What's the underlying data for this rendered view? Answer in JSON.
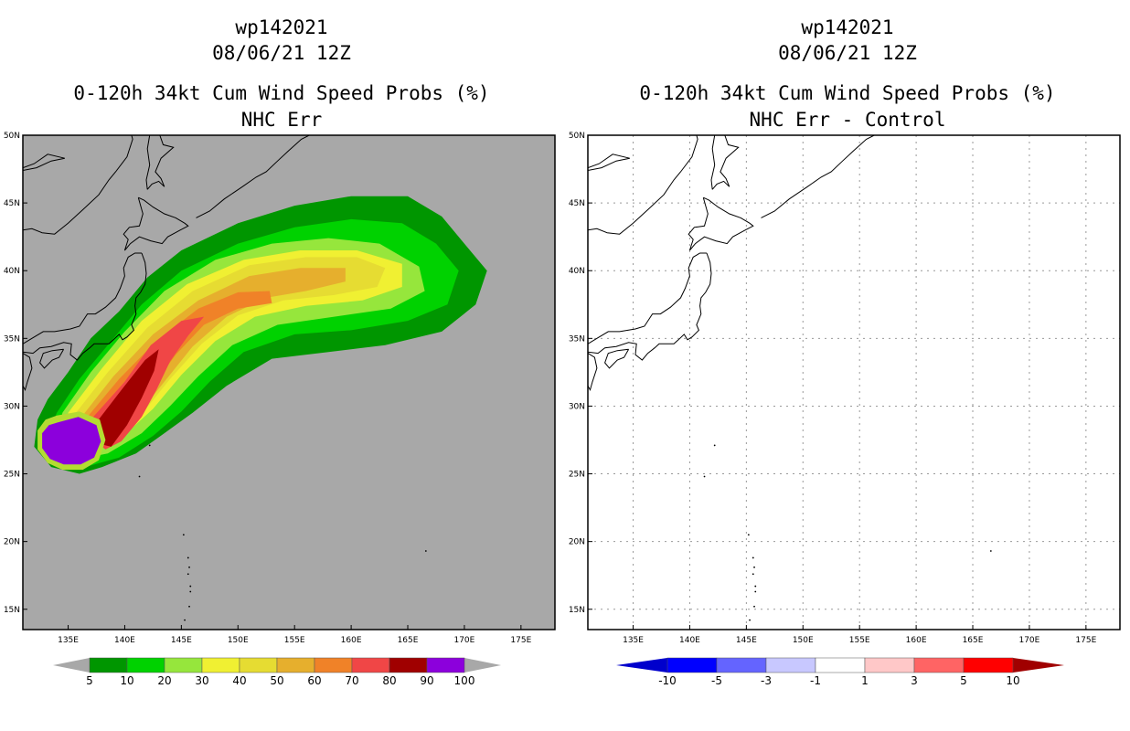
{
  "left": {
    "title_line1": "wp142021",
    "title_line2": "08/06/21 12Z",
    "title_line3": "0-120h 34kt Cum Wind Speed Probs (%)",
    "title_line4": "NHC Err"
  },
  "right": {
    "title_line1": "wp142021",
    "title_line2": "08/06/21 12Z",
    "title_line3": "0-120h 34kt Cum Wind Speed Probs (%)",
    "title_line4": "NHC Err - Control"
  },
  "chart_data": [
    {
      "type": "heatmap",
      "title": "0-120h 34kt Cum Wind Speed Probs (%)",
      "subtitle": "NHC Err",
      "xlim": [
        131,
        178
      ],
      "ylim": [
        13.5,
        50
      ],
      "x_ticks": [
        "135E",
        "140E",
        "145E",
        "150E",
        "155E",
        "160E",
        "165E",
        "170E",
        "175E"
      ],
      "y_ticks": [
        "15N",
        "20N",
        "25N",
        "30N",
        "35N",
        "40N",
        "45N",
        "50N"
      ],
      "background_color": "#a8a8a8",
      "legend_levels": [
        "5",
        "10",
        "20",
        "30",
        "40",
        "50",
        "60",
        "70",
        "80",
        "90",
        "100"
      ],
      "legend_colors": [
        "#009600",
        "#00d200",
        "#96e63c",
        "#f0f032",
        "#e6dc32",
        "#e6af2d",
        "#f08228",
        "#f04646",
        "#a00000",
        "#8c00dc"
      ],
      "grid": false,
      "contours": [
        {
          "level": "5",
          "color": "#009600",
          "points": [
            [
              133.2,
              30.5
            ],
            [
              135,
              32.5
            ],
            [
              137,
              35
            ],
            [
              139.5,
              37
            ],
            [
              142,
              39.5
            ],
            [
              145,
              41.5
            ],
            [
              150,
              43.5
            ],
            [
              155,
              44.8
            ],
            [
              160,
              45.5
            ],
            [
              165,
              45.5
            ],
            [
              168,
              44
            ],
            [
              170,
              42
            ],
            [
              172,
              40
            ],
            [
              171,
              37.5
            ],
            [
              168,
              35.5
            ],
            [
              163,
              34.5
            ],
            [
              158,
              34
            ],
            [
              153,
              33.5
            ],
            [
              149,
              31.5
            ],
            [
              146,
              29.5
            ],
            [
              143.5,
              28
            ],
            [
              141,
              26.5
            ],
            [
              138,
              25.5
            ],
            [
              136,
              25
            ],
            [
              133.5,
              25.5
            ],
            [
              132,
              27
            ],
            [
              132.3,
              29
            ]
          ]
        },
        {
          "level": "10",
          "color": "#00d200",
          "points": [
            [
              134,
              29.5
            ],
            [
              136,
              32
            ],
            [
              138.5,
              34.5
            ],
            [
              141.5,
              37.5
            ],
            [
              145,
              40
            ],
            [
              150,
              42
            ],
            [
              155,
              43.2
            ],
            [
              160,
              43.8
            ],
            [
              164.5,
              43.5
            ],
            [
              167.5,
              42
            ],
            [
              169.5,
              40
            ],
            [
              168.5,
              37.5
            ],
            [
              165,
              36.3
            ],
            [
              160,
              35.6
            ],
            [
              155,
              35.3
            ],
            [
              150.5,
              34
            ],
            [
              147.5,
              31.8
            ],
            [
              145,
              29.6
            ],
            [
              142.5,
              27.8
            ],
            [
              139.5,
              26.2
            ],
            [
              136.5,
              25.5
            ],
            [
              134,
              26.5
            ],
            [
              133.3,
              28
            ]
          ]
        },
        {
          "level": "20",
          "color": "#96e63c",
          "points": [
            [
              134.5,
              29.5
            ],
            [
              137,
              32.5
            ],
            [
              140,
              35.5
            ],
            [
              143.5,
              38.5
            ],
            [
              148,
              40.8
            ],
            [
              153,
              42
            ],
            [
              158,
              42.4
            ],
            [
              162.5,
              42
            ],
            [
              166,
              40.3
            ],
            [
              166.5,
              38.5
            ],
            [
              163.5,
              37.2
            ],
            [
              158.5,
              36.6
            ],
            [
              153.5,
              36
            ],
            [
              149.5,
              34.5
            ],
            [
              146.5,
              32.2
            ],
            [
              144,
              30
            ],
            [
              141.5,
              28
            ],
            [
              138.5,
              26.5
            ],
            [
              135.5,
              26
            ],
            [
              134,
              27.5
            ]
          ]
        },
        {
          "level": "30",
          "color": "#f0f032",
          "points": [
            [
              135,
              29.5
            ],
            [
              138,
              32.8
            ],
            [
              141.5,
              36.3
            ],
            [
              145.5,
              39
            ],
            [
              150.5,
              40.8
            ],
            [
              155.5,
              41.5
            ],
            [
              160.5,
              41.5
            ],
            [
              164.5,
              40.5
            ],
            [
              164.5,
              38.8
            ],
            [
              161,
              37.8
            ],
            [
              156,
              37.4
            ],
            [
              151.5,
              36.6
            ],
            [
              148,
              34.8
            ],
            [
              145,
              32.3
            ],
            [
              142.5,
              29.8
            ],
            [
              139.5,
              27.5
            ],
            [
              136.5,
              26.5
            ],
            [
              135,
              28
            ]
          ]
        },
        {
          "level": "40",
          "color": "#e6dc32",
          "points": [
            [
              135.5,
              29.3
            ],
            [
              138.5,
              32.5
            ],
            [
              142,
              35.8
            ],
            [
              146,
              38.5
            ],
            [
              151,
              40.4
            ],
            [
              156,
              41
            ],
            [
              160.5,
              41
            ],
            [
              163,
              40.2
            ],
            [
              162.3,
              38.8
            ],
            [
              158.5,
              38.2
            ],
            [
              154,
              37.8
            ],
            [
              150,
              36.7
            ],
            [
              146.8,
              34.6
            ],
            [
              144,
              32
            ],
            [
              141.5,
              29.4
            ],
            [
              138.8,
              27.3
            ],
            [
              136.3,
              27
            ]
          ]
        },
        {
          "level": "50",
          "color": "#e6af2d",
          "points": [
            [
              136,
              29
            ],
            [
              139,
              32.2
            ],
            [
              142.5,
              35.3
            ],
            [
              146.5,
              37.8
            ],
            [
              151,
              39.6
            ],
            [
              155.5,
              40.2
            ],
            [
              159.5,
              40.2
            ],
            [
              159.5,
              39.2
            ],
            [
              156,
              38.5
            ],
            [
              152.5,
              38
            ],
            [
              149,
              36.6
            ],
            [
              146,
              34.4
            ],
            [
              143.5,
              31.8
            ],
            [
              141,
              29.2
            ],
            [
              138.5,
              27.4
            ],
            [
              136.5,
              27.3
            ]
          ]
        },
        {
          "level": "60",
          "color": "#f08228",
          "points": [
            [
              136.5,
              29
            ],
            [
              139.5,
              32
            ],
            [
              142.8,
              34.8
            ],
            [
              146.5,
              37.2
            ],
            [
              150,
              38.4
            ],
            [
              152.8,
              38.5
            ],
            [
              153,
              37.6
            ],
            [
              150,
              37.2
            ],
            [
              147,
              36
            ],
            [
              144.5,
              33.8
            ],
            [
              142.5,
              31.5
            ],
            [
              140.5,
              29.2
            ],
            [
              138.5,
              27.6
            ],
            [
              136.8,
              27.6
            ]
          ]
        },
        {
          "level": "70",
          "color": "#f04646",
          "points": [
            [
              137,
              29
            ],
            [
              140,
              31.8
            ],
            [
              142.3,
              34.5
            ],
            [
              145,
              36.3
            ],
            [
              147,
              36.6
            ],
            [
              145.6,
              35.2
            ],
            [
              144,
              33.3
            ],
            [
              142.8,
              31.2
            ],
            [
              141.5,
              29.2
            ],
            [
              139.7,
              27.4
            ],
            [
              138.3,
              26.8
            ],
            [
              137.2,
              27.5
            ]
          ]
        },
        {
          "level": "80",
          "color": "#a00000",
          "points": [
            [
              137.5,
              28.8
            ],
            [
              139.8,
              31.3
            ],
            [
              141.8,
              33.4
            ],
            [
              143,
              34.2
            ],
            [
              142.6,
              32.6
            ],
            [
              141.5,
              30.6
            ],
            [
              140.2,
              28.6
            ],
            [
              138.8,
              27
            ],
            [
              137.8,
              27.2
            ]
          ]
        },
        {
          "level": "90",
          "color": "#b4dc32",
          "points": [
            [
              134,
              29.3
            ],
            [
              136,
              29.6
            ],
            [
              137.8,
              29
            ],
            [
              138.3,
              27.5
            ],
            [
              137.7,
              26
            ],
            [
              136.3,
              25.3
            ],
            [
              134.5,
              25.3
            ],
            [
              133.2,
              25.8
            ],
            [
              132.3,
              26.8
            ],
            [
              132.3,
              28.2
            ],
            [
              133,
              29
            ]
          ]
        },
        {
          "level": "100",
          "color": "#8c00dc",
          "points": [
            [
              134.1,
              28.8
            ],
            [
              135.9,
              29.2
            ],
            [
              137.5,
              28.6
            ],
            [
              137.9,
              27.4
            ],
            [
              137.3,
              26.2
            ],
            [
              136.1,
              25.7
            ],
            [
              134.6,
              25.7
            ],
            [
              133.4,
              26.1
            ],
            [
              132.7,
              26.9
            ],
            [
              132.7,
              28
            ],
            [
              133.3,
              28.6
            ]
          ]
        }
      ]
    },
    {
      "type": "heatmap",
      "title": "0-120h 34kt Cum Wind Speed Probs (%)",
      "subtitle": "NHC Err - Control",
      "xlim": [
        131,
        178
      ],
      "ylim": [
        13.5,
        50
      ],
      "x_ticks": [
        "135E",
        "140E",
        "145E",
        "150E",
        "155E",
        "160E",
        "165E",
        "170E",
        "175E"
      ],
      "y_ticks": [
        "15N",
        "20N",
        "25N",
        "30N",
        "35N",
        "40N",
        "45N",
        "50N"
      ],
      "background_color": "#ffffff",
      "legend_levels": [
        "-10",
        "-5",
        "-3",
        "-1",
        "1",
        "3",
        "5",
        "10"
      ],
      "legend_colors": [
        "#0000cc",
        "#0000ff",
        "#6464ff",
        "#c8c8ff",
        "#ffffff",
        "#ffc8c8",
        "#ff6464",
        "#ff0000",
        "#a00000"
      ],
      "grid": true,
      "contours": []
    }
  ]
}
